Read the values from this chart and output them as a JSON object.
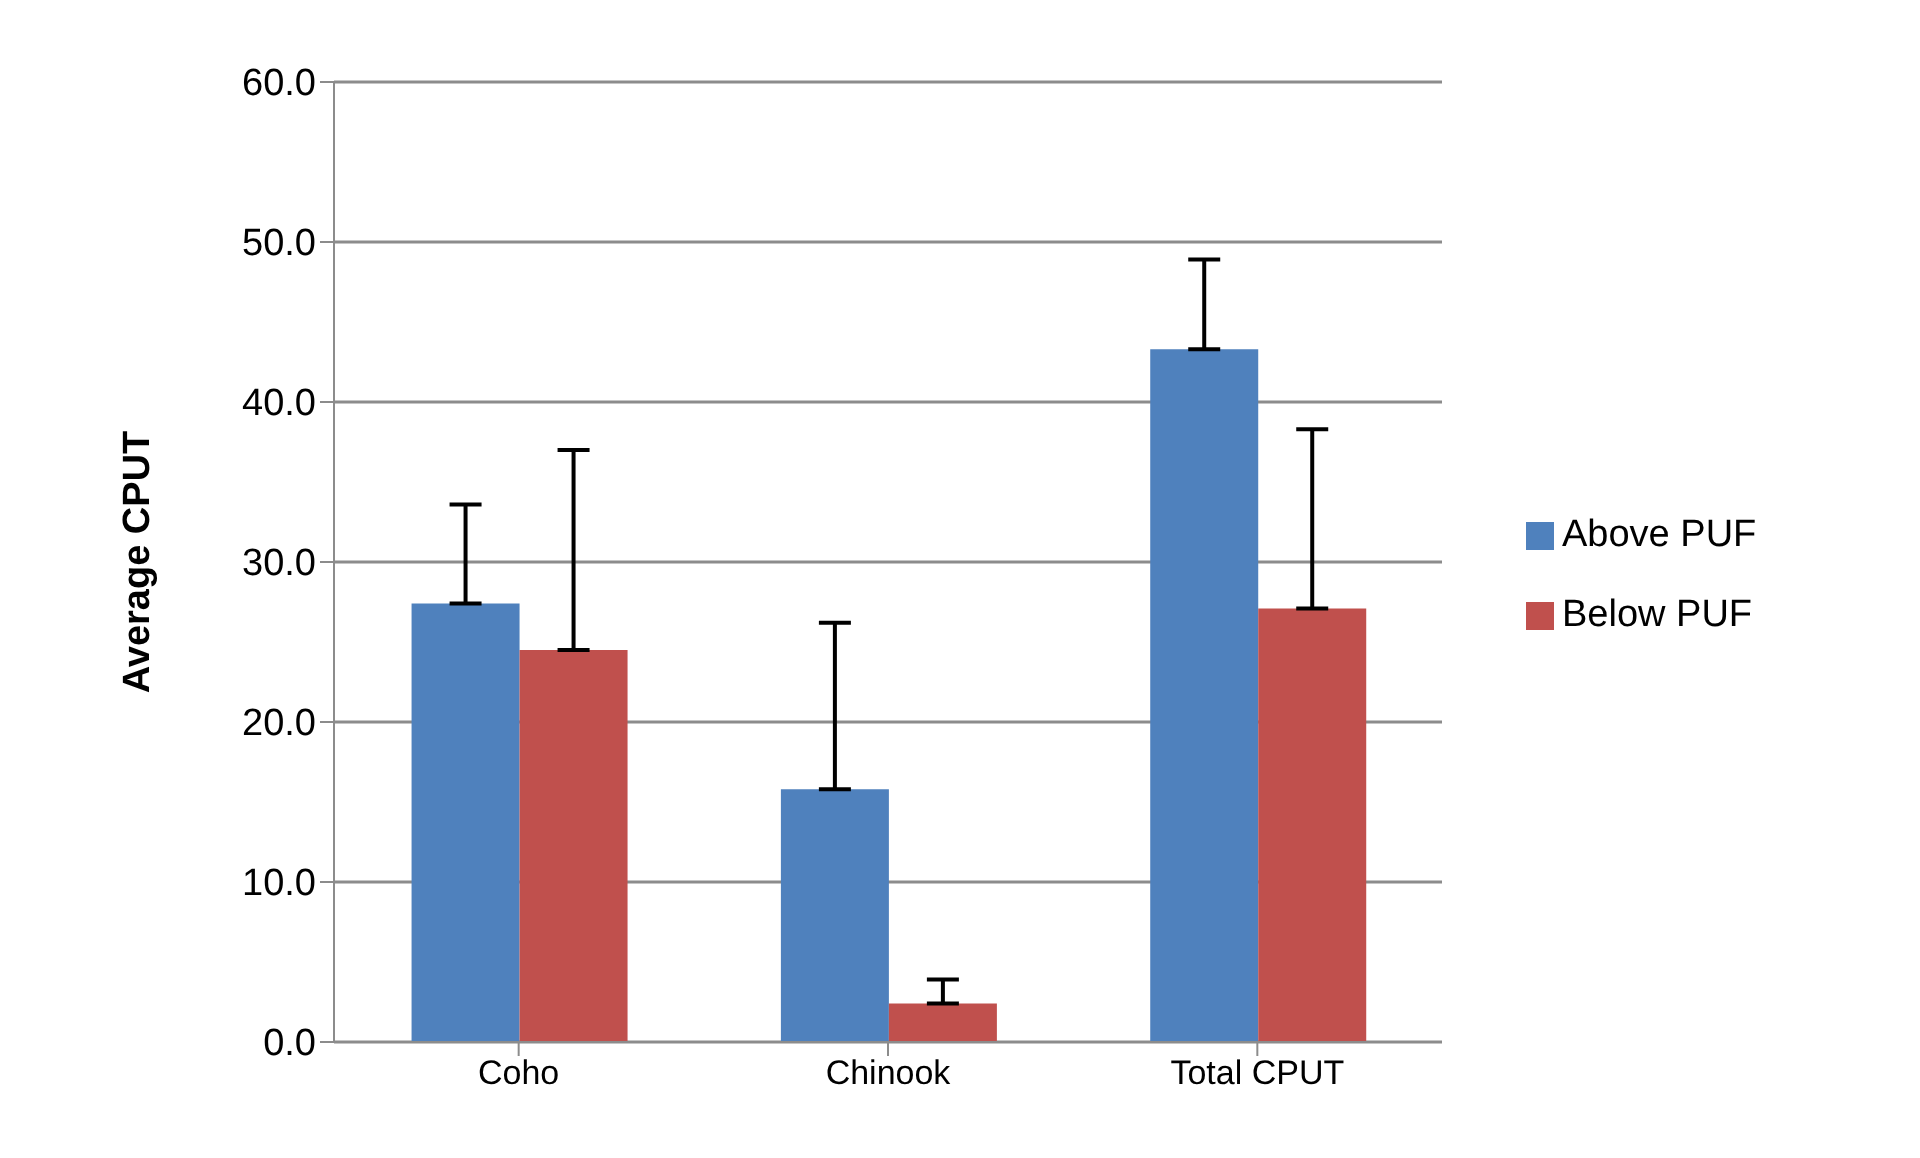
{
  "chart_data": {
    "type": "bar",
    "ylabel": "Average CPUT",
    "categories": [
      "Coho",
      "Chinook",
      "Total CPUT"
    ],
    "series": [
      {
        "name": "Above PUF",
        "color": "#4f81bd",
        "values": [
          27.4,
          15.8,
          43.3
        ],
        "errors": [
          [
            27.4,
            33.6
          ],
          [
            15.8,
            26.2
          ],
          [
            43.3,
            48.9
          ]
        ]
      },
      {
        "name": "Below PUF",
        "color": "#c0504d",
        "values": [
          24.5,
          2.4,
          27.1
        ],
        "errors": [
          [
            24.5,
            37.0
          ],
          [
            2.4,
            3.9
          ],
          [
            27.1,
            38.3
          ]
        ]
      }
    ],
    "ylim": [
      0,
      60
    ],
    "yticks": [
      {
        "value": 0,
        "label": "0.0"
      },
      {
        "value": 10,
        "label": "10.0"
      },
      {
        "value": 20,
        "label": "20.0"
      },
      {
        "value": 30,
        "label": "30.0"
      },
      {
        "value": 40,
        "label": "40.0"
      },
      {
        "value": 50,
        "label": "50.0"
      },
      {
        "value": 60,
        "label": "60.0"
      }
    ],
    "grid": "y",
    "legend": "right"
  }
}
